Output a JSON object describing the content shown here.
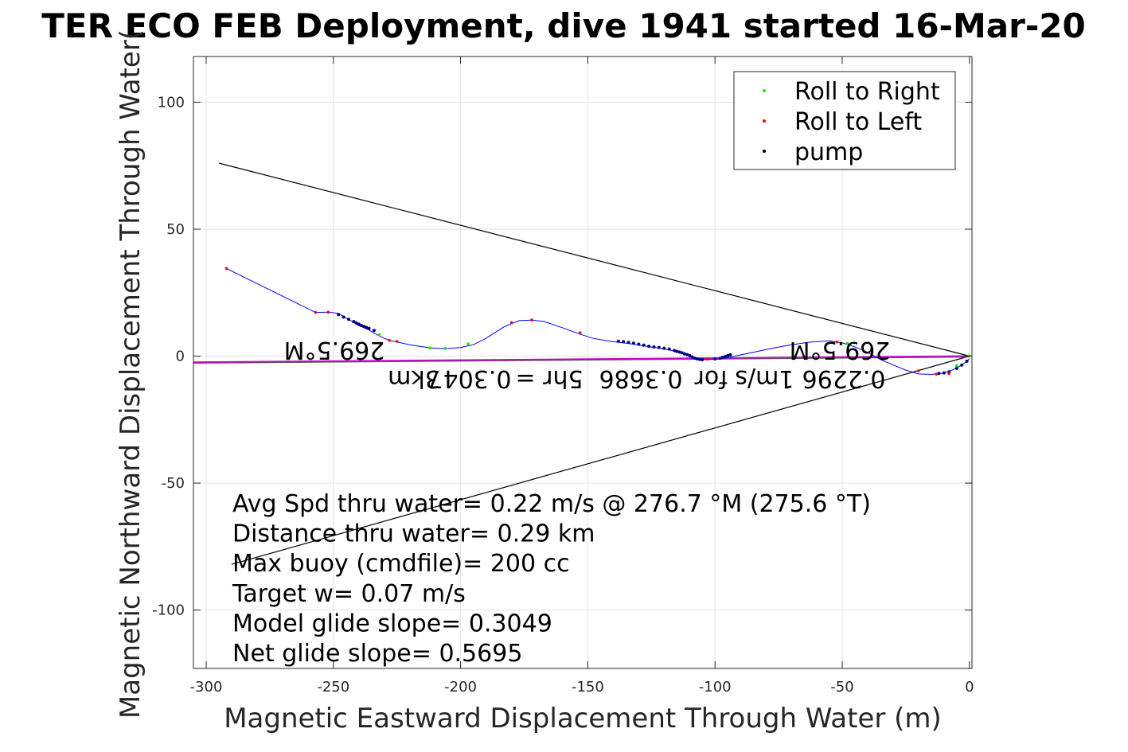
{
  "chart_data": {
    "type": "line",
    "title": "TER ECO FEB Deployment, dive 1941 started 16-Mar-20",
    "xlabel": "Magnetic Eastward Displacement Through Water (m)",
    "ylabel": "Magnetic Northward Displacement Through Water(",
    "xlim": [
      -305,
      1
    ],
    "ylim": [
      -123,
      118
    ],
    "xticks": [
      -300,
      -250,
      -200,
      -150,
      -100,
      -50,
      0
    ],
    "yticks": [
      100,
      50,
      0,
      -50,
      -100
    ],
    "grid": true,
    "legend_position": "top-right",
    "legend": [
      "Roll to Right",
      "Roll to Left",
      "pump"
    ],
    "colors": {
      "track": "#0000ff",
      "roll_right": "#00ee00",
      "roll_left": "#ff0000",
      "pump": "#000080",
      "current": "#cc00cc",
      "guide": "#000000"
    },
    "track": {
      "x": [
        -292,
        -257,
        -252,
        -248,
        -245,
        -242,
        -240,
        -238,
        -236,
        -233,
        -230,
        -227,
        -220,
        -212,
        -206,
        -200,
        -195,
        -190,
        -183,
        -177,
        -172,
        -167,
        -160,
        -154,
        -148,
        -141,
        -134,
        -127,
        -121,
        -116,
        -112,
        -109,
        -107,
        -105,
        -102,
        -98,
        -95,
        -91,
        -85,
        -78,
        -70,
        -62,
        -55,
        -50,
        -45,
        -40,
        -35,
        -30,
        -25,
        -20,
        -15,
        -10,
        -6,
        -3,
        -1,
        0
      ],
      "y": [
        34.5,
        17.2,
        17.3,
        16.8,
        15,
        13.3,
        12,
        11.2,
        10.3,
        8.5,
        7,
        6,
        4.5,
        3.2,
        3,
        3.4,
        4.5,
        7,
        11.5,
        14,
        14.2,
        13.6,
        11.2,
        9,
        7,
        5.8,
        5,
        3.9,
        3,
        2,
        0.8,
        -0.5,
        -1.2,
        -1.4,
        -1.3,
        -1.1,
        -0.6,
        0.3,
        1.5,
        3,
        4.5,
        5.6,
        6,
        5.2,
        3.6,
        1.5,
        -1.3,
        -3.5,
        -5.5,
        -7,
        -7.2,
        -6.6,
        -5.2,
        -3.5,
        -2,
        -1
      ]
    },
    "roll_right": {
      "x": [
        -212,
        -206,
        -197,
        -232,
        -48,
        -5,
        0
      ],
      "y": [
        3.2,
        3.0,
        4.8,
        8.4,
        5.0,
        -3.8,
        0.1
      ]
    },
    "roll_left": {
      "x": [
        -292,
        -257,
        -252,
        -228,
        -225,
        -180,
        -172,
        -153,
        -103,
        -52,
        -20,
        -13,
        -8
      ],
      "y": [
        34.5,
        17.2,
        17.3,
        6.2,
        5.8,
        13.2,
        14.2,
        9.2,
        -1.2,
        5.6,
        -5.8,
        -7.1,
        -6.9
      ],
      "label_note": ""
    },
    "pump": {
      "x": [
        -248,
        -246,
        -244,
        -242,
        -241,
        -240,
        -239,
        -238,
        -237,
        -236,
        -234,
        -138,
        -136,
        -134,
        -132,
        -130,
        -128,
        -126,
        -124,
        -122,
        -120,
        -118,
        -116,
        -115,
        -114,
        -113,
        -112,
        -111,
        -110,
        -109,
        -108,
        -107,
        -106,
        -105,
        -100,
        -98,
        -97,
        -96,
        -95,
        -94,
        -12,
        -10,
        -8,
        -5,
        -3,
        -1
      ],
      "y": [
        16.4,
        15.4,
        14.5,
        13.6,
        13.1,
        12.6,
        12.1,
        11.7,
        11.3,
        10.9,
        10.1,
        5.9,
        5.7,
        5.4,
        5.1,
        4.7,
        4.3,
        3.9,
        3.6,
        3.4,
        3.1,
        2.8,
        2.2,
        1.9,
        1.6,
        1.3,
        0.9,
        0.6,
        0.2,
        -0.3,
        -0.8,
        -1.1,
        -1.3,
        -1.4,
        -1.1,
        -0.9,
        -0.5,
        -0.2,
        0.2,
        0.5,
        -6.8,
        -6.6,
        -6.2,
        -4.8,
        -3.5,
        -2.0
      ]
    },
    "current": {
      "x": [
        -305,
        0
      ],
      "y": [
        -2.4,
        0
      ]
    },
    "guide_lines": [
      {
        "x": [
          -295,
          0
        ],
        "y": [
          76,
          0
        ]
      },
      {
        "x": [
          -290,
          0
        ],
        "y": [
          -82,
          0
        ]
      }
    ],
    "annotations_rotated": [
      {
        "text": "269.5°M",
        "x": -240,
        "y": 5
      },
      {
        "text": "269.5°M",
        "x": -56,
        "y": 5
      },
      {
        "text": "0.2296",
        "x": -41,
        "y": -7
      },
      {
        "text": "1m/s for",
        "x": -41,
        "y": -7
      },
      {
        "text": "0.3686",
        "x": -41,
        "y": -7
      },
      {
        "text": "5hr =",
        "x": -41,
        "y": -7
      },
      {
        "text": "0.3047",
        "x": -41,
        "y": -7
      },
      {
        "text": "3km",
        "x": -41,
        "y": -7
      }
    ],
    "stats": [
      "Avg Spd thru water=  0.22 m/s @ 276.7 °M (275.6 °T)",
      "Distance thru water=  0.29 km",
      "Max buoy (cmdfile)= 200 cc",
      "Target w= 0.07 m/s",
      "Model glide slope= 0.3049",
      "Net glide slope= 0.5695"
    ]
  }
}
